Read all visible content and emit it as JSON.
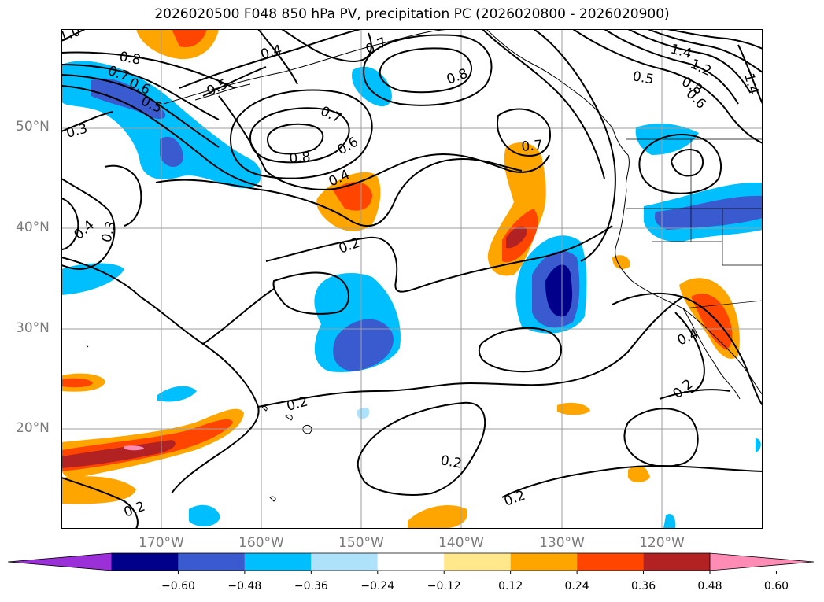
{
  "title": "2026020500 F048 850 hPa PV, precipitation PC (2026020800 - 2026020900)",
  "lat_labels": [
    "50°N",
    "40°N",
    "30°N",
    "20°N"
  ],
  "lon_labels": [
    "170°W",
    "160°W",
    "150°W",
    "140°W",
    "130°W",
    "120°W"
  ],
  "colorbar": {
    "extend": "both",
    "ticks": [
      "−0.60",
      "−0.48",
      "−0.36",
      "−0.24",
      "−0.12",
      "0.12",
      "0.24",
      "0.36",
      "0.48",
      "0.60"
    ],
    "colors": [
      "#9b30d8",
      "#00008b",
      "#3a5bcf",
      "#00bfff",
      "#aee2fb",
      "#ffffff",
      "#ffe88c",
      "#ffa500",
      "#ff4500",
      "#b22222",
      "#ff8cb4"
    ]
  },
  "contour_labels": [
    "1.0",
    "0.8",
    "0.7",
    "0.6",
    "0.5",
    "0.3",
    "0.4",
    "0.5",
    "0.7",
    "0.8",
    "0.7",
    "0.8",
    "0.6",
    "0.4",
    "0.7",
    "1.4",
    "1.2",
    "0.5",
    "0.8",
    "0.6",
    "1.4",
    "0.4",
    "0.3",
    "0.2",
    "0.4",
    "0.2",
    "0.2",
    "0.2",
    "0.2",
    "0.2"
  ]
}
